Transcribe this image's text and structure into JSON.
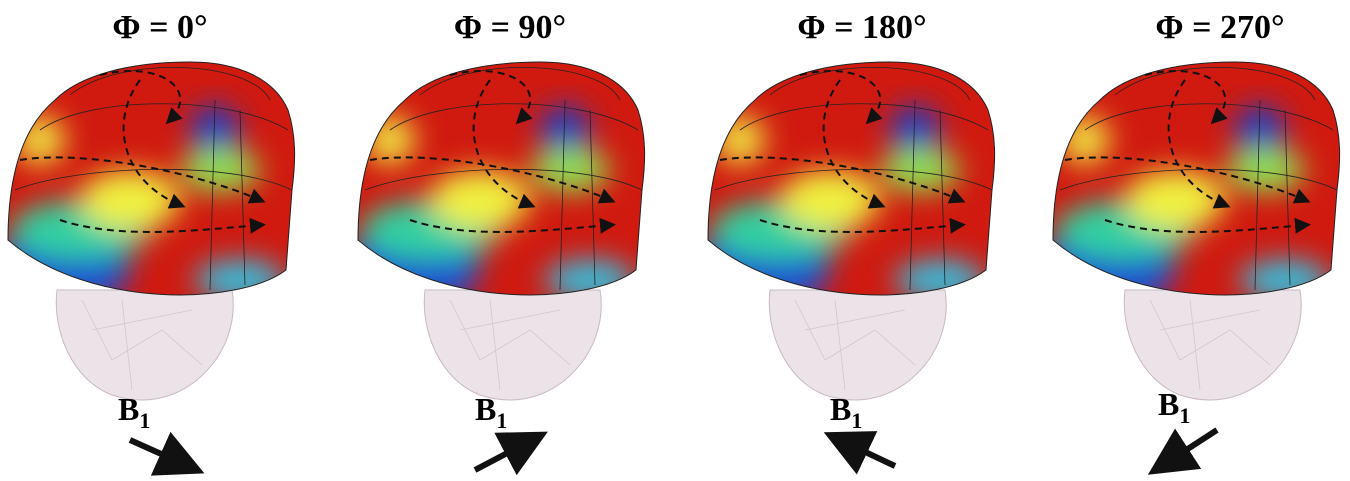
{
  "panels": [
    {
      "title": "Φ = 0°",
      "field_label": "B",
      "field_sub": "1"
    },
    {
      "title": "Φ = 90°",
      "field_label": "B",
      "field_sub": "1"
    },
    {
      "title": "Φ = 180°",
      "field_label": "B",
      "field_sub": "1"
    },
    {
      "title": "Φ = 270°",
      "field_label": "B",
      "field_sub": "1"
    }
  ]
}
